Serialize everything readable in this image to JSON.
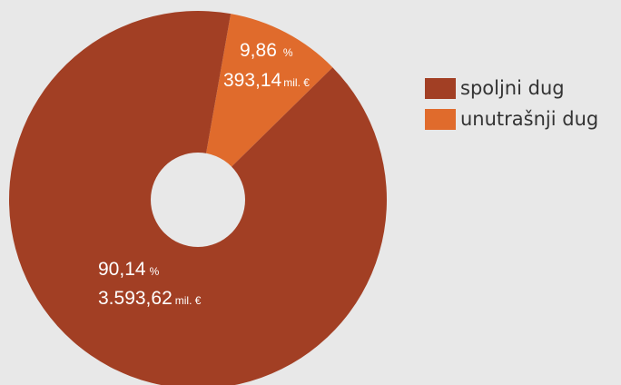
{
  "chart_data": {
    "type": "pie",
    "donut": true,
    "categories": [
      "spoljni dug",
      "unutrašnji dug"
    ],
    "series": [
      {
        "values": [
          90.14,
          9.86
        ],
        "amounts": [
          "3.593,62",
          "393,14"
        ]
      }
    ],
    "slices": [
      {
        "name": "spoljni dug",
        "percent": 90.14,
        "percent_text": "90,14",
        "amount": 3593.62,
        "amount_text": "3.593,62",
        "color": "#a23f24"
      },
      {
        "name": "unutrašnji dug",
        "percent": 9.86,
        "percent_text": "9,86",
        "amount": 393.14,
        "amount_text": "393,14",
        "color": "#e06b2c"
      }
    ],
    "percent_unit": "%",
    "amount_unit": "mil. €",
    "legend_position": "right"
  },
  "colors": {
    "background": "#e8e8e8",
    "hole": "#e8e8e8",
    "label_text": "#ffffff",
    "legend_text": "#333333"
  }
}
